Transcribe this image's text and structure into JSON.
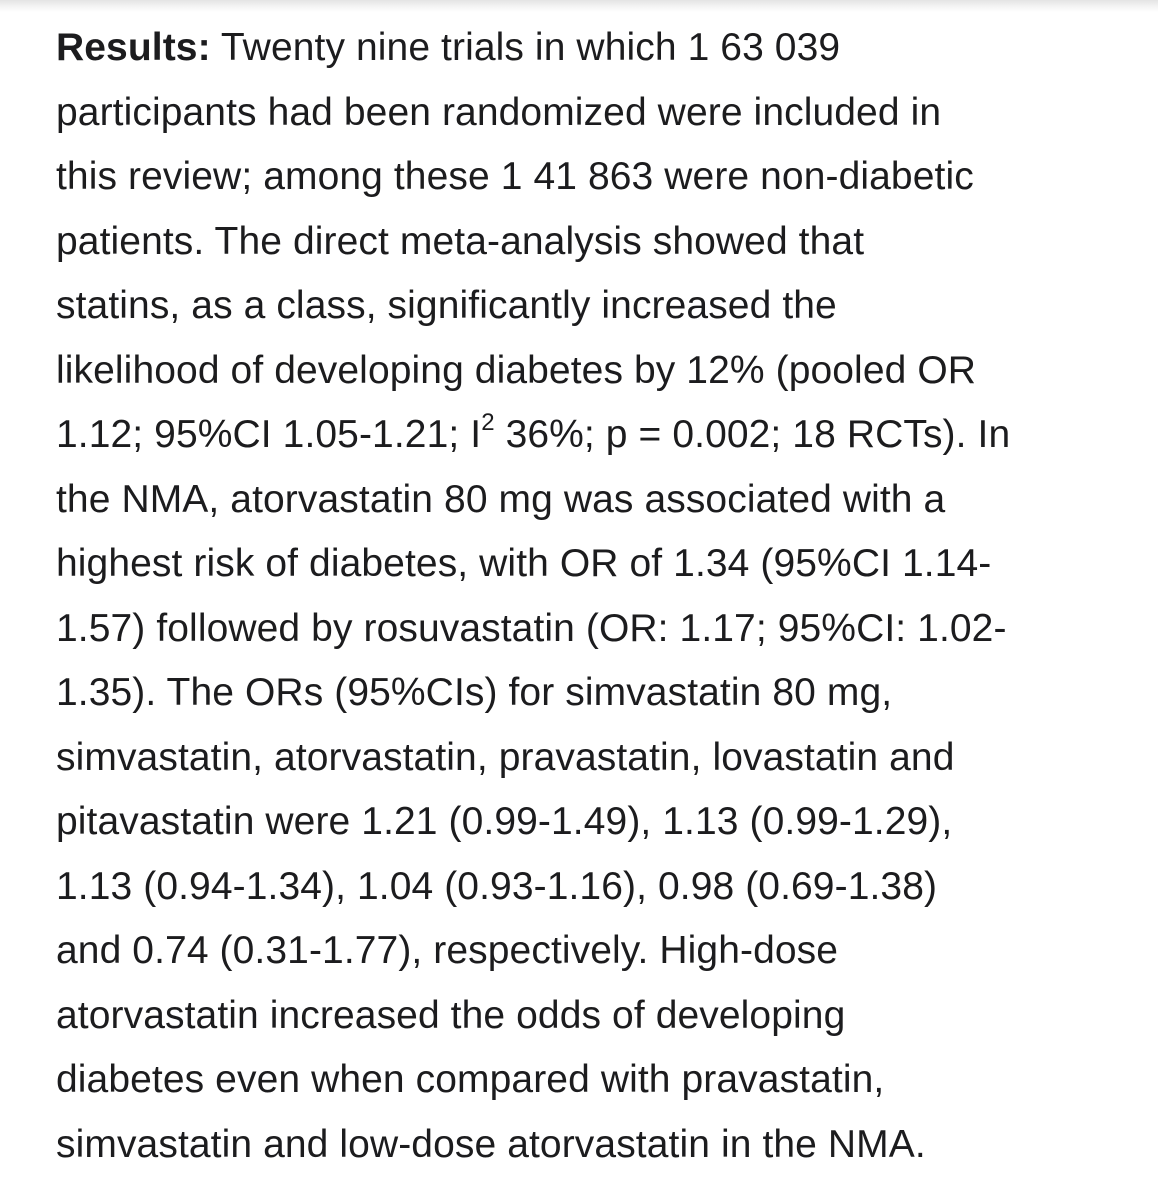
{
  "abstract": {
    "heading": "Results:",
    "lines": [
      " Twenty nine trials in which 1 63 039",
      "participants had been randomized were included in",
      "this review; among these 1 41 863 were non-diabetic",
      "patients. The direct meta-analysis showed that",
      "statins, as a class, significantly increased the",
      "likelihood of developing diabetes by 12% (pooled OR",
      "1.12; 95%CI 1.05-1.21; I",
      "2",
      " 36%; p = 0.002; 18 RCTs). In",
      "the NMA, atorvastatin 80 mg was associated with a",
      "highest risk of diabetes, with OR of 1.34 (95%CI 1.14-",
      "1.57) followed by rosuvastatin (OR: 1.17; 95%CI: 1.02-",
      "1.35). The ORs (95%CIs) for simvastatin 80 mg,",
      "simvastatin, atorvastatin, pravastatin, lovastatin and",
      "pitavastatin were 1.21 (0.99-1.49), 1.13 (0.99-1.29),",
      "1.13 (0.94-1.34), 1.04 (0.93-1.16), 0.98 (0.69-1.38)",
      "and 0.74 (0.31-1.77), respectively. High-dose",
      "atorvastatin increased the odds of developing",
      "diabetes even when compared with pravastatin,",
      "simvastatin and low-dose atorvastatin in the NMA."
    ]
  }
}
